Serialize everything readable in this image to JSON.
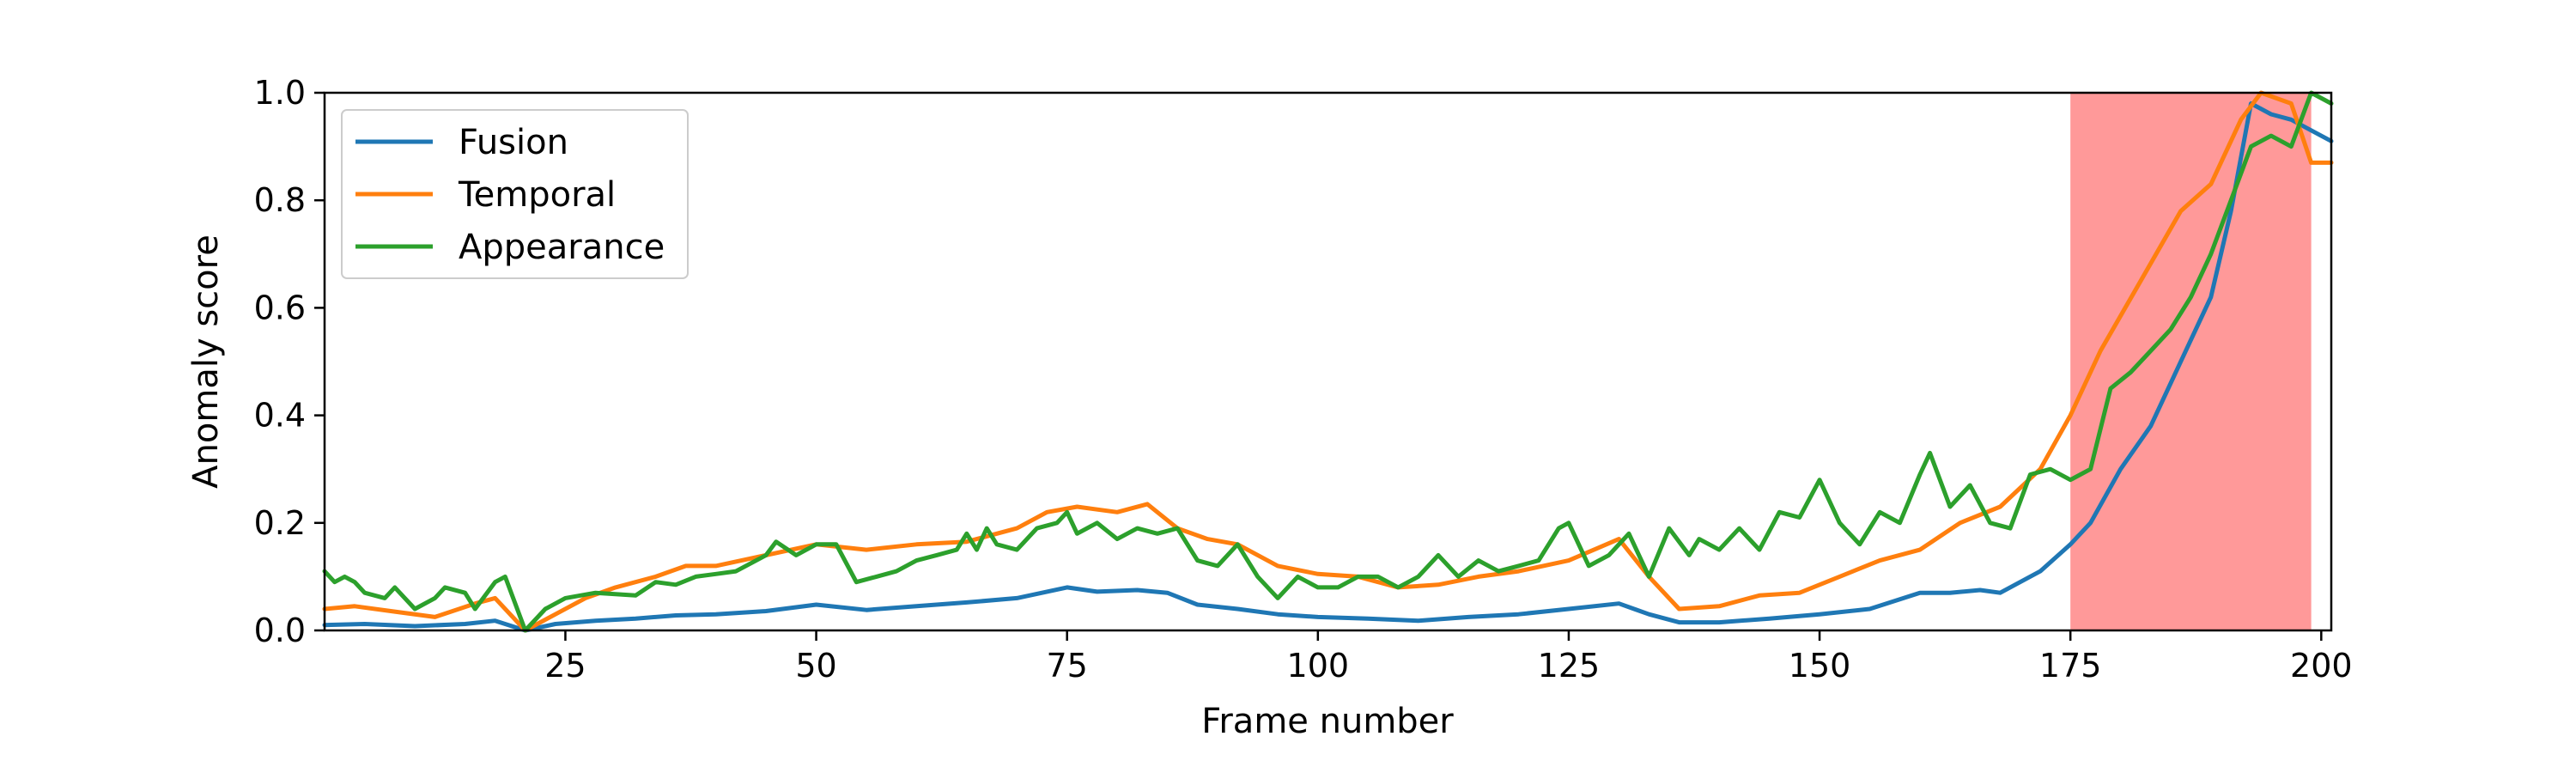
{
  "chart_data": {
    "type": "line",
    "xlabel": "Frame number",
    "ylabel": "Anomaly score",
    "xlim": [
      1,
      201
    ],
    "ylim": [
      0,
      1
    ],
    "xticks": [
      "25",
      "50",
      "75",
      "100",
      "125",
      "150",
      "175",
      "200"
    ],
    "yticks": [
      "0.0",
      "0.2",
      "0.4",
      "0.6",
      "0.8",
      "1.0"
    ],
    "grid": false,
    "legend": "top-left",
    "anomaly_region": {
      "x_start": 175,
      "x_end": 199,
      "color": "#ff9999"
    },
    "series": [
      {
        "name": "Fusion",
        "color": "#1f77b4",
        "points": [
          [
            1,
            0.01
          ],
          [
            5,
            0.012
          ],
          [
            10,
            0.008
          ],
          [
            15,
            0.012
          ],
          [
            18,
            0.018
          ],
          [
            21,
            0.0
          ],
          [
            24,
            0.012
          ],
          [
            28,
            0.018
          ],
          [
            32,
            0.022
          ],
          [
            36,
            0.028
          ],
          [
            40,
            0.03
          ],
          [
            45,
            0.036
          ],
          [
            50,
            0.048
          ],
          [
            55,
            0.038
          ],
          [
            60,
            0.045
          ],
          [
            65,
            0.052
          ],
          [
            70,
            0.06
          ],
          [
            75,
            0.08
          ],
          [
            78,
            0.072
          ],
          [
            82,
            0.075
          ],
          [
            85,
            0.07
          ],
          [
            88,
            0.048
          ],
          [
            92,
            0.04
          ],
          [
            96,
            0.03
          ],
          [
            100,
            0.025
          ],
          [
            105,
            0.022
          ],
          [
            110,
            0.018
          ],
          [
            115,
            0.025
          ],
          [
            120,
            0.03
          ],
          [
            125,
            0.04
          ],
          [
            130,
            0.05
          ],
          [
            133,
            0.03
          ],
          [
            136,
            0.015
          ],
          [
            140,
            0.015
          ],
          [
            145,
            0.022
          ],
          [
            150,
            0.03
          ],
          [
            155,
            0.04
          ],
          [
            160,
            0.07
          ],
          [
            163,
            0.07
          ],
          [
            166,
            0.075
          ],
          [
            168,
            0.07
          ],
          [
            172,
            0.11
          ],
          [
            175,
            0.16
          ],
          [
            177,
            0.2
          ],
          [
            180,
            0.3
          ],
          [
            183,
            0.38
          ],
          [
            186,
            0.5
          ],
          [
            189,
            0.62
          ],
          [
            191,
            0.78
          ],
          [
            193,
            0.98
          ],
          [
            195,
            0.96
          ],
          [
            197,
            0.95
          ],
          [
            199,
            0.93
          ],
          [
            201,
            0.91
          ]
        ]
      },
      {
        "name": "Temporal",
        "color": "#ff7f0e",
        "points": [
          [
            1,
            0.04
          ],
          [
            4,
            0.045
          ],
          [
            8,
            0.035
          ],
          [
            12,
            0.025
          ],
          [
            16,
            0.05
          ],
          [
            18,
            0.06
          ],
          [
            21,
            0.0
          ],
          [
            24,
            0.03
          ],
          [
            27,
            0.06
          ],
          [
            30,
            0.08
          ],
          [
            34,
            0.1
          ],
          [
            37,
            0.12
          ],
          [
            40,
            0.12
          ],
          [
            45,
            0.14
          ],
          [
            50,
            0.16
          ],
          [
            55,
            0.15
          ],
          [
            60,
            0.16
          ],
          [
            65,
            0.165
          ],
          [
            70,
            0.19
          ],
          [
            73,
            0.22
          ],
          [
            76,
            0.23
          ],
          [
            80,
            0.22
          ],
          [
            83,
            0.235
          ],
          [
            86,
            0.19
          ],
          [
            89,
            0.17
          ],
          [
            92,
            0.16
          ],
          [
            96,
            0.12
          ],
          [
            100,
            0.105
          ],
          [
            104,
            0.1
          ],
          [
            108,
            0.08
          ],
          [
            112,
            0.085
          ],
          [
            116,
            0.1
          ],
          [
            120,
            0.11
          ],
          [
            125,
            0.13
          ],
          [
            130,
            0.17
          ],
          [
            133,
            0.1
          ],
          [
            136,
            0.04
          ],
          [
            140,
            0.045
          ],
          [
            144,
            0.065
          ],
          [
            148,
            0.07
          ],
          [
            152,
            0.1
          ],
          [
            156,
            0.13
          ],
          [
            160,
            0.15
          ],
          [
            164,
            0.2
          ],
          [
            168,
            0.23
          ],
          [
            172,
            0.3
          ],
          [
            175,
            0.4
          ],
          [
            178,
            0.52
          ],
          [
            182,
            0.65
          ],
          [
            186,
            0.78
          ],
          [
            189,
            0.83
          ],
          [
            192,
            0.95
          ],
          [
            194,
            1.0
          ],
          [
            197,
            0.98
          ],
          [
            199,
            0.87
          ],
          [
            201,
            0.87
          ]
        ]
      },
      {
        "name": "Appearance",
        "color": "#2ca02c",
        "points": [
          [
            1,
            0.11
          ],
          [
            2,
            0.09
          ],
          [
            3,
            0.1
          ],
          [
            4,
            0.09
          ],
          [
            5,
            0.07
          ],
          [
            7,
            0.06
          ],
          [
            8,
            0.08
          ],
          [
            10,
            0.04
          ],
          [
            12,
            0.06
          ],
          [
            13,
            0.08
          ],
          [
            15,
            0.07
          ],
          [
            16,
            0.04
          ],
          [
            18,
            0.09
          ],
          [
            19,
            0.1
          ],
          [
            21,
            0.0
          ],
          [
            23,
            0.04
          ],
          [
            25,
            0.06
          ],
          [
            28,
            0.07
          ],
          [
            32,
            0.065
          ],
          [
            34,
            0.09
          ],
          [
            36,
            0.085
          ],
          [
            38,
            0.1
          ],
          [
            40,
            0.105
          ],
          [
            42,
            0.11
          ],
          [
            45,
            0.14
          ],
          [
            46,
            0.165
          ],
          [
            48,
            0.14
          ],
          [
            50,
            0.16
          ],
          [
            52,
            0.16
          ],
          [
            54,
            0.09
          ],
          [
            56,
            0.1
          ],
          [
            58,
            0.11
          ],
          [
            60,
            0.13
          ],
          [
            62,
            0.14
          ],
          [
            64,
            0.15
          ],
          [
            65,
            0.18
          ],
          [
            66,
            0.15
          ],
          [
            67,
            0.19
          ],
          [
            68,
            0.16
          ],
          [
            70,
            0.15
          ],
          [
            72,
            0.19
          ],
          [
            74,
            0.2
          ],
          [
            75,
            0.22
          ],
          [
            76,
            0.18
          ],
          [
            78,
            0.2
          ],
          [
            80,
            0.17
          ],
          [
            82,
            0.19
          ],
          [
            84,
            0.18
          ],
          [
            86,
            0.19
          ],
          [
            88,
            0.13
          ],
          [
            90,
            0.12
          ],
          [
            92,
            0.16
          ],
          [
            94,
            0.1
          ],
          [
            96,
            0.06
          ],
          [
            98,
            0.1
          ],
          [
            100,
            0.08
          ],
          [
            102,
            0.08
          ],
          [
            104,
            0.1
          ],
          [
            106,
            0.1
          ],
          [
            108,
            0.08
          ],
          [
            110,
            0.1
          ],
          [
            112,
            0.14
          ],
          [
            114,
            0.1
          ],
          [
            116,
            0.13
          ],
          [
            118,
            0.11
          ],
          [
            120,
            0.12
          ],
          [
            122,
            0.13
          ],
          [
            124,
            0.19
          ],
          [
            125,
            0.2
          ],
          [
            127,
            0.12
          ],
          [
            129,
            0.14
          ],
          [
            131,
            0.18
          ],
          [
            133,
            0.1
          ],
          [
            135,
            0.19
          ],
          [
            137,
            0.14
          ],
          [
            138,
            0.17
          ],
          [
            140,
            0.15
          ],
          [
            142,
            0.19
          ],
          [
            144,
            0.15
          ],
          [
            146,
            0.22
          ],
          [
            148,
            0.21
          ],
          [
            150,
            0.28
          ],
          [
            152,
            0.2
          ],
          [
            154,
            0.16
          ],
          [
            156,
            0.22
          ],
          [
            158,
            0.2
          ],
          [
            160,
            0.29
          ],
          [
            161,
            0.33
          ],
          [
            163,
            0.23
          ],
          [
            165,
            0.27
          ],
          [
            167,
            0.2
          ],
          [
            169,
            0.19
          ],
          [
            171,
            0.29
          ],
          [
            173,
            0.3
          ],
          [
            175,
            0.28
          ],
          [
            177,
            0.3
          ],
          [
            179,
            0.45
          ],
          [
            181,
            0.48
          ],
          [
            183,
            0.52
          ],
          [
            185,
            0.56
          ],
          [
            187,
            0.62
          ],
          [
            189,
            0.7
          ],
          [
            191,
            0.8
          ],
          [
            193,
            0.9
          ],
          [
            195,
            0.92
          ],
          [
            197,
            0.9
          ],
          [
            199,
            1.0
          ],
          [
            201,
            0.98
          ]
        ]
      }
    ]
  }
}
